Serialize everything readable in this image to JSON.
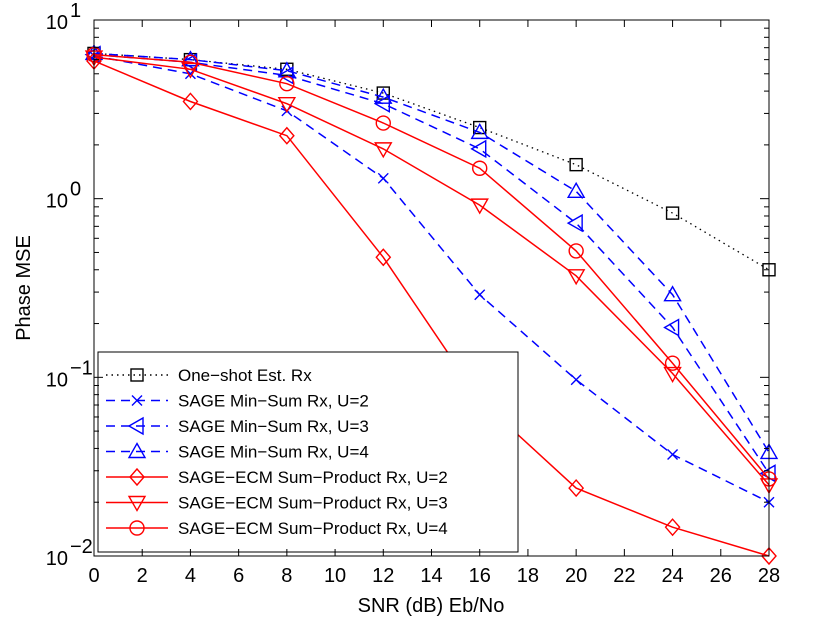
{
  "chart_data": {
    "type": "line",
    "title": "",
    "xlabel": "SNR (dB) Eb/No",
    "ylabel": "Phase MSE",
    "xlim": [
      0,
      28
    ],
    "ylim": [
      0.01,
      10
    ],
    "yscale": "log",
    "grid": false,
    "legend_position": "bottom-left",
    "x_ticks": [
      "0",
      "2",
      "4",
      "6",
      "8",
      "10",
      "12",
      "14",
      "16",
      "18",
      "20",
      "22",
      "24",
      "26",
      "28"
    ],
    "y_ticks": [
      {
        "value": 0.01,
        "base": "10",
        "exp": "−2"
      },
      {
        "value": 0.1,
        "base": "10",
        "exp": "−1"
      },
      {
        "value": 1,
        "base": "10",
        "exp": "0"
      },
      {
        "value": 10,
        "base": "10",
        "exp": "1"
      }
    ],
    "series": [
      {
        "name": "One−shot Est. Rx",
        "color": "#000000",
        "dash": "dotted",
        "marker": "square",
        "x": [
          0,
          4,
          8,
          12,
          16,
          20,
          24,
          28
        ],
        "y": [
          6.5,
          6.0,
          5.3,
          3.9,
          2.5,
          1.55,
          0.83,
          0.4
        ]
      },
      {
        "name": "SAGE Min−Sum Rx, U=2",
        "color": "#0000ff",
        "dash": "dashed",
        "marker": "x",
        "x": [
          0,
          4,
          8,
          12,
          16,
          20,
          24,
          28
        ],
        "y": [
          6.3,
          5.0,
          3.1,
          1.3,
          0.29,
          0.097,
          0.037,
          0.02
        ]
      },
      {
        "name": "SAGE Min−Sum Rx, U=3",
        "color": "#0000ff",
        "dash": "dashed",
        "marker": "triangle-left",
        "x": [
          0,
          4,
          8,
          12,
          16,
          20,
          24,
          28
        ],
        "y": [
          6.4,
          5.8,
          4.9,
          3.4,
          1.9,
          0.73,
          0.19,
          0.029
        ]
      },
      {
        "name": "SAGE Min−Sum Rx, U=4",
        "color": "#0000ff",
        "dash": "dashed",
        "marker": "triangle-up",
        "x": [
          0,
          4,
          8,
          12,
          16,
          20,
          24,
          28
        ],
        "y": [
          6.5,
          6.0,
          5.2,
          3.7,
          2.35,
          1.1,
          0.29,
          0.038
        ]
      },
      {
        "name": "SAGE−ECM Sum−Product Rx, U=2",
        "color": "#ff0000",
        "dash": "solid",
        "marker": "diamond",
        "x": [
          0,
          4,
          8,
          12,
          16,
          20,
          24,
          28
        ],
        "y": [
          5.9,
          3.5,
          2.25,
          0.47,
          0.075,
          0.024,
          0.0145,
          0.01
        ]
      },
      {
        "name": "SAGE−ECM Sum−Product Rx, U=3",
        "color": "#ff0000",
        "dash": "solid",
        "marker": "triangle-down",
        "x": [
          0,
          4,
          8,
          12,
          16,
          20,
          24,
          28
        ],
        "y": [
          6.2,
          5.3,
          3.4,
          1.9,
          0.92,
          0.37,
          0.105,
          0.025
        ]
      },
      {
        "name": "SAGE−ECM Sum−Product Rx, U=4",
        "color": "#ff0000",
        "dash": "solid",
        "marker": "circle",
        "x": [
          0,
          4,
          8,
          12,
          16,
          20,
          24,
          28
        ],
        "y": [
          6.4,
          5.8,
          4.4,
          2.65,
          1.48,
          0.51,
          0.12,
          0.027
        ]
      }
    ]
  }
}
